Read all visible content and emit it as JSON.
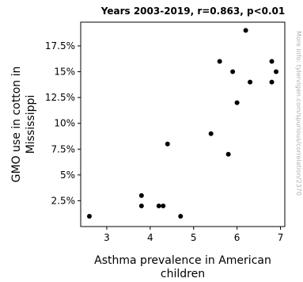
{
  "chart_data": {
    "type": "scatter",
    "title": "Years 2003-2019, r=0.863, p<0.01",
    "xlabel_lines": [
      "Asthma prevalence in American",
      "children"
    ],
    "ylabel_lines": [
      "GMO use in cotton in",
      "Mississippi"
    ],
    "watermark": "More info: tylervigen.com/spurious/correlation/2370",
    "xlim": [
      2.4,
      7.1
    ],
    "ylim": [
      0,
      19.8
    ],
    "x_ticks": [
      3,
      4,
      5,
      6,
      7
    ],
    "x_tick_labels": [
      "3",
      "4",
      "5",
      "6",
      "7"
    ],
    "y_ticks": [
      2.5,
      5,
      7.5,
      10,
      12.5,
      15,
      17.5
    ],
    "y_tick_labels": [
      "2.5%",
      "5%",
      "7.5%",
      "10%",
      "12.5%",
      "15%",
      "17.5%"
    ],
    "grid": false,
    "marker_color": "#000000",
    "points": [
      {
        "x": 2.6,
        "y": 1
      },
      {
        "x": 3.8,
        "y": 3
      },
      {
        "x": 3.8,
        "y": 2
      },
      {
        "x": 4.2,
        "y": 2
      },
      {
        "x": 4.3,
        "y": 2
      },
      {
        "x": 4.4,
        "y": 8
      },
      {
        "x": 4.7,
        "y": 1
      },
      {
        "x": 5.4,
        "y": 9
      },
      {
        "x": 5.6,
        "y": 16
      },
      {
        "x": 5.8,
        "y": 7
      },
      {
        "x": 5.9,
        "y": 15
      },
      {
        "x": 6.0,
        "y": 12
      },
      {
        "x": 6.2,
        "y": 19
      },
      {
        "x": 6.3,
        "y": 14
      },
      {
        "x": 6.8,
        "y": 16
      },
      {
        "x": 6.8,
        "y": 14
      },
      {
        "x": 6.9,
        "y": 15
      }
    ]
  }
}
